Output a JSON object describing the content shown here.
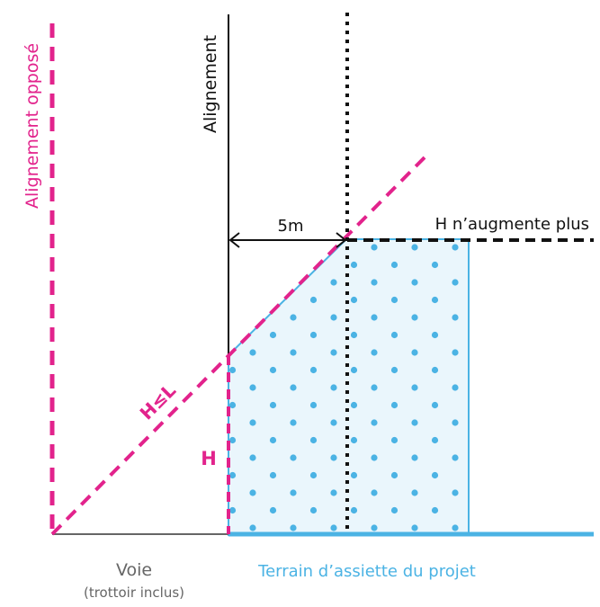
{
  "labels": {
    "alignement_oppose": "Alignement opposé",
    "alignement": "Alignement",
    "distance": "5m",
    "h_stop": "H n’augmente plus",
    "h_le_l": "H≤L",
    "h": "H",
    "voie": "Voie",
    "voie_note": "(trottoir inclus)",
    "terrain": "Terrain d’assiette du projet"
  },
  "colors": {
    "magenta": "#e2238c",
    "blue": "#4bb3e4",
    "fill": "#eaf6fc",
    "black": "#111111",
    "grey": "#666666"
  }
}
